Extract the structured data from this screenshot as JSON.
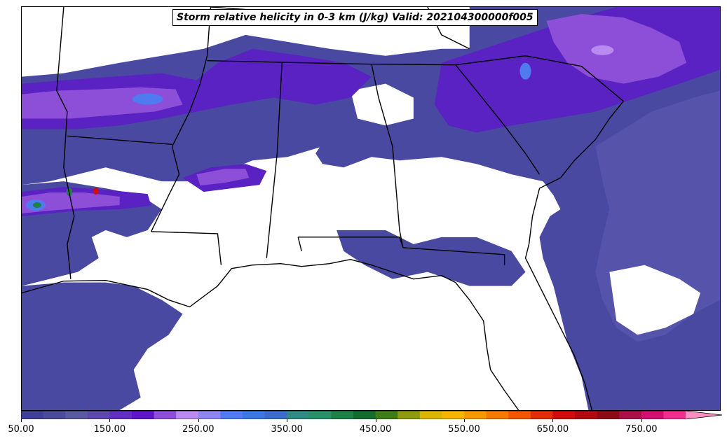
{
  "title": "Storm relative helicity in 0-3 km (J/kg) Valid: 202104300000f005",
  "colorbar": {
    "min": 50,
    "max": 800,
    "step": 25,
    "extend": "max",
    "tick_labels": [
      "50.00",
      "150.00",
      "250.00",
      "350.00",
      "450.00",
      "550.00",
      "650.00",
      "750.00"
    ],
    "tick_values": [
      50,
      150,
      250,
      350,
      450,
      550,
      650,
      750
    ],
    "colors": [
      "#3f3f9c",
      "#4b4b9e",
      "#5a5aa3",
      "#5c48b0",
      "#6130c0",
      "#5f17c5",
      "#8d4fd8",
      "#b98af0",
      "#8f85f2",
      "#4f7af0",
      "#3a7ae0",
      "#3b6cc9",
      "#2f8b84",
      "#2a9068",
      "#1d8148",
      "#126e2e",
      "#3e7d16",
      "#8d9a12",
      "#dcb406",
      "#f7b500",
      "#f49a00",
      "#f47b00",
      "#f45500",
      "#e22e08",
      "#d00c0c",
      "#b10b12",
      "#8e0a16",
      "#a8104a",
      "#d0106e",
      "#ee2f8e",
      "#ff8fc2"
    ]
  },
  "map": {
    "background": "#ffffff",
    "boundary_color": "#000000",
    "field_colors": {
      "low": "#4a49a2",
      "mid": "#5553aa",
      "high": "#5a21c3",
      "higher": "#8d4fd8",
      "peak": "#4f7af0",
      "extreme": "#1d8148"
    }
  }
}
